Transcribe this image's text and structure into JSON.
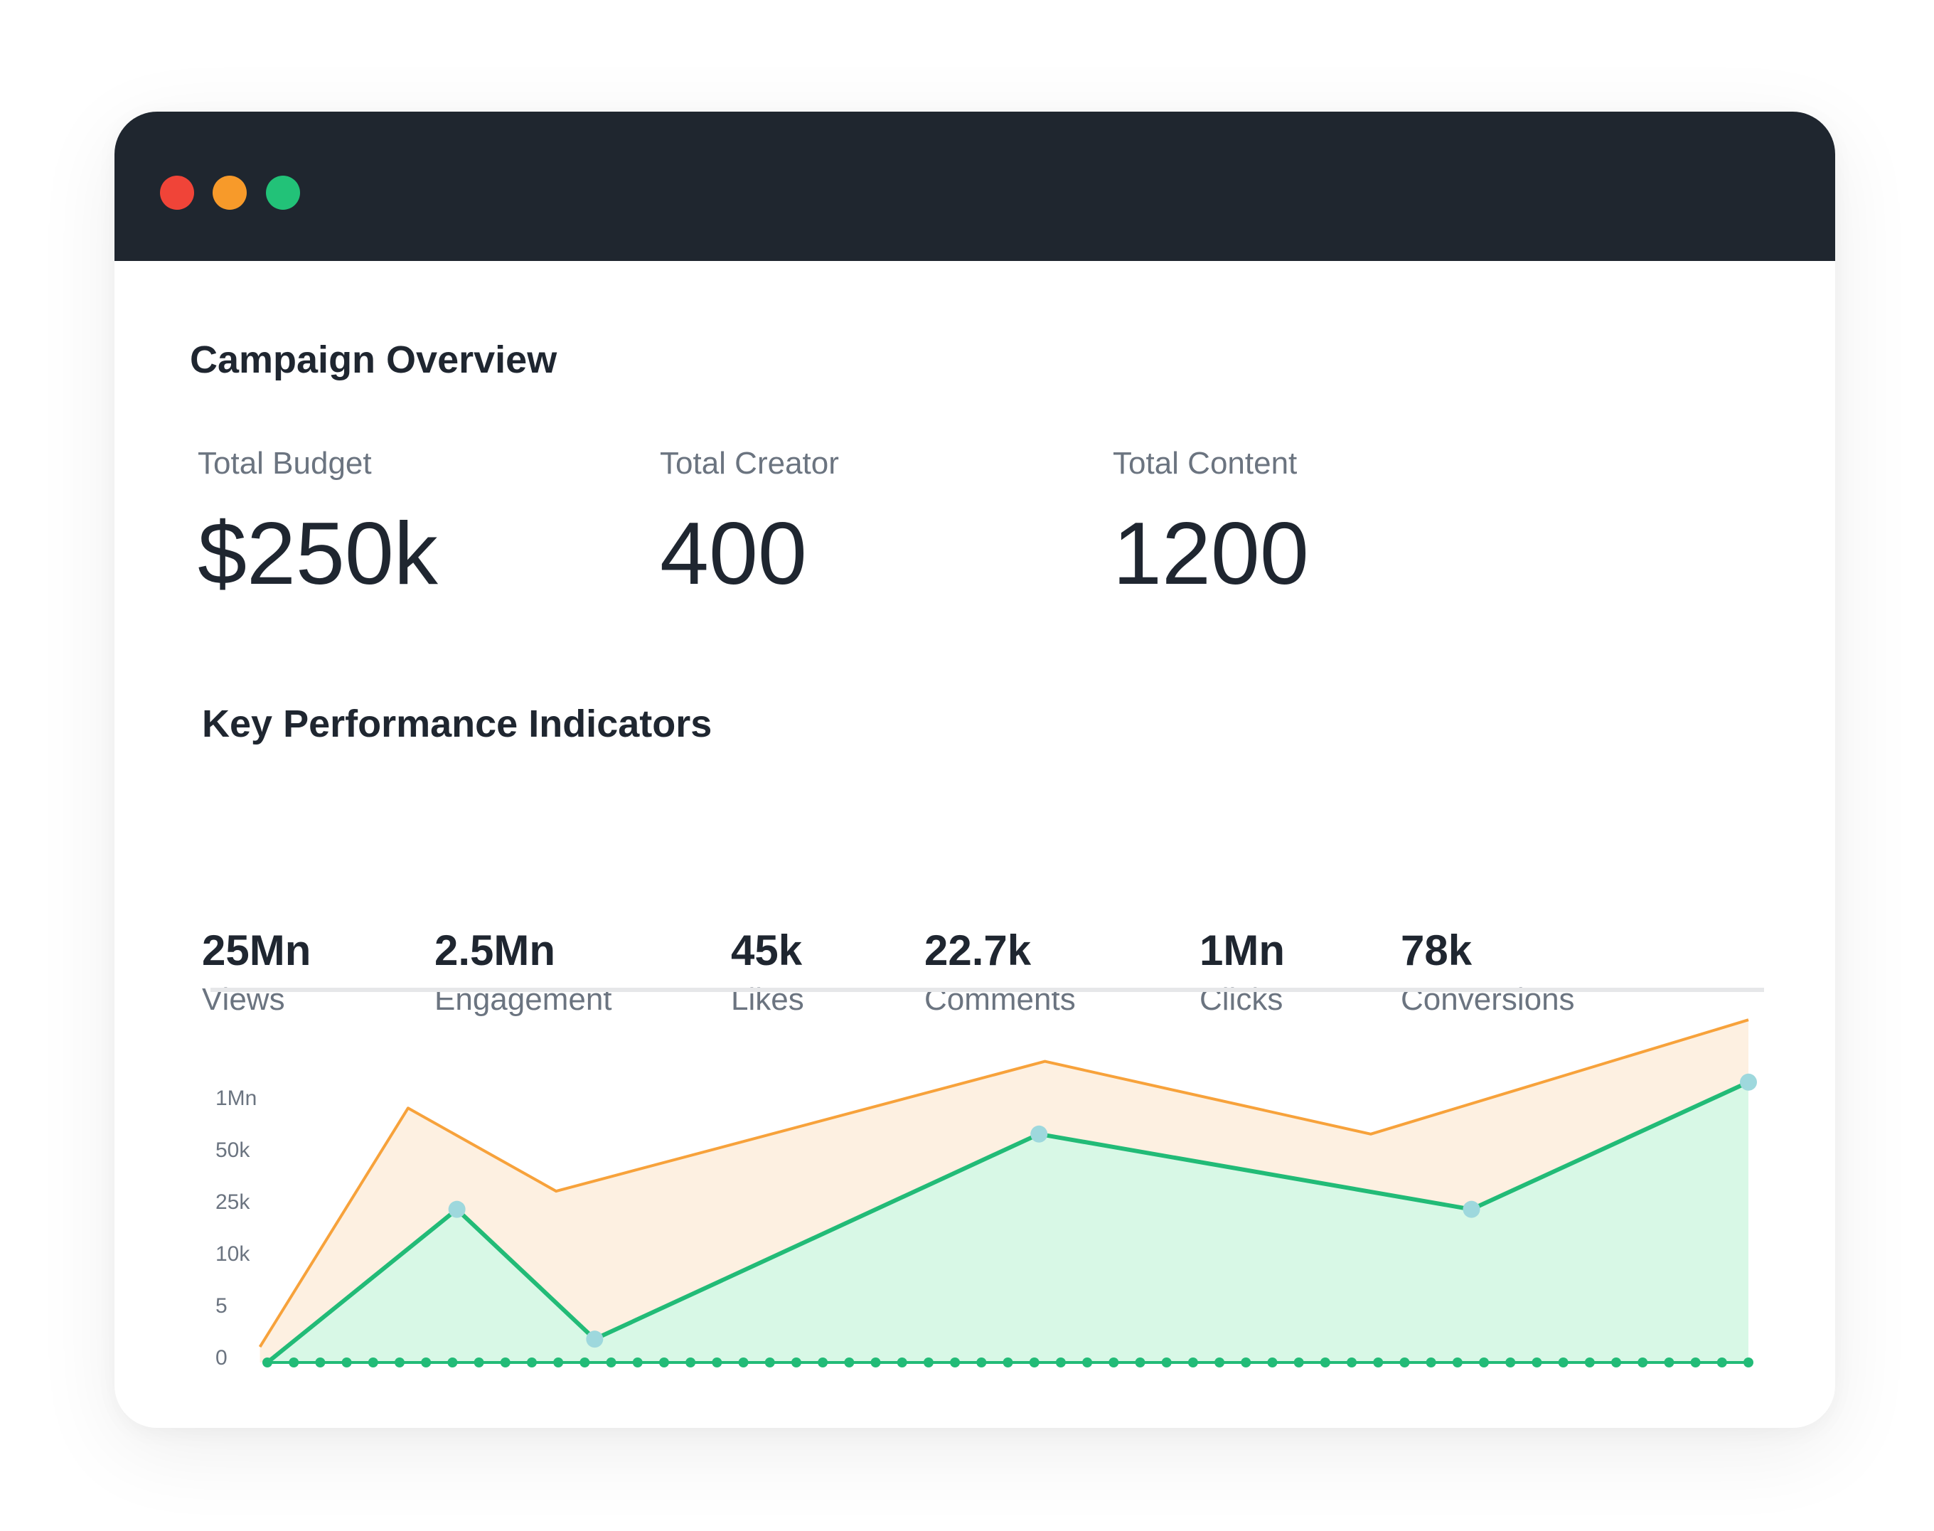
{
  "window": {
    "controls": [
      {
        "name": "close",
        "color": "#f04438"
      },
      {
        "name": "minimize",
        "color": "#f79a2a"
      },
      {
        "name": "maximize",
        "color": "#22c278"
      }
    ]
  },
  "overview": {
    "title": "Campaign Overview",
    "stats": [
      {
        "label": "Total Budget",
        "value": "$250k"
      },
      {
        "label": "Total Creator",
        "value": "400"
      },
      {
        "label": "Total Content",
        "value": "1200"
      }
    ]
  },
  "kpi": {
    "title": "Key Performance Indicators",
    "items": [
      {
        "value": "25Mn",
        "label": "Views"
      },
      {
        "value": "2.5Mn",
        "label": "Engagement"
      },
      {
        "value": "45k",
        "label": "Likes"
      },
      {
        "value": "22.7k",
        "label": "Comments"
      },
      {
        "value": "1Mn",
        "label": "Clicks"
      },
      {
        "value": "78k",
        "label": "Conversions"
      }
    ]
  },
  "chart_data": {
    "type": "area",
    "title": "",
    "xlabel": "",
    "ylabel": "",
    "yticks": [
      "0",
      "5",
      "10k",
      "25k",
      "50k",
      "1Mn"
    ],
    "ylim": [
      0,
      5.5
    ],
    "xlim": [
      0,
      100
    ],
    "grid": false,
    "legend": "none",
    "series": [
      {
        "color": "#f7a23b",
        "fill": "#fdf0e1",
        "points": [
          [
            -0.5,
            0.3
          ],
          [
            9.5,
            4.9
          ],
          [
            19.5,
            3.3
          ],
          [
            52.5,
            5.8
          ],
          [
            74.5,
            4.4
          ],
          [
            100,
            6.6
          ]
        ],
        "markers": false
      },
      {
        "color": "#22bb77",
        "fill": "#d8f8e6",
        "marker_color": "#9ed8dd",
        "points": [
          [
            0,
            0
          ],
          [
            12.8,
            2.95
          ],
          [
            22.1,
            0.45
          ],
          [
            52.1,
            4.4
          ],
          [
            81.3,
            2.95
          ],
          [
            100,
            5.4
          ]
        ],
        "markers": true
      }
    ],
    "baseline_dots": 57
  }
}
